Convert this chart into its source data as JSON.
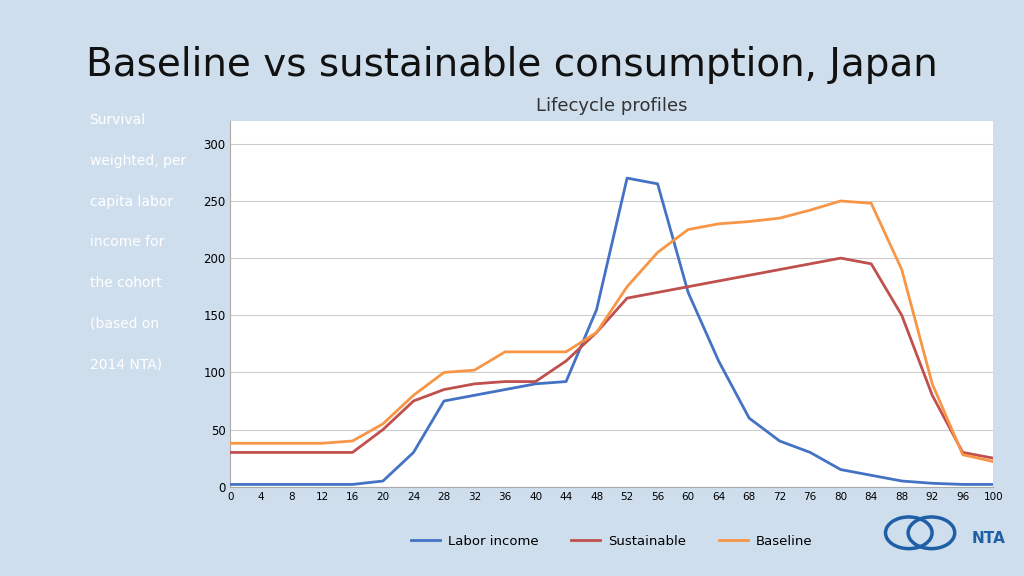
{
  "title": "Baseline vs sustainable consumption, Japan",
  "chart_title": "Lifecycle profiles",
  "background_color": "#cfdeed",
  "chart_bg": "#ffffff",
  "sidebar_lines": [
    "Survival",
    "weighted, per",
    "capita labor",
    "income for",
    "the cohort",
    "(based on",
    "2014 NTA)"
  ],
  "sidebar_bg": "#4a9fd4",
  "sidebar_text_color": "#ffffff",
  "x_ticks": [
    0,
    4,
    8,
    12,
    16,
    20,
    24,
    28,
    32,
    36,
    40,
    44,
    48,
    52,
    56,
    60,
    64,
    68,
    72,
    76,
    80,
    84,
    88,
    92,
    96,
    100
  ],
  "ylim": [
    0,
    320
  ],
  "y_ticks": [
    0,
    50,
    100,
    150,
    200,
    250,
    300
  ],
  "labor_income_color": "#4472c4",
  "sustainable_color": "#c0504d",
  "baseline_color": "#f79646",
  "legend_labels": [
    "Labor income",
    "Sustainable",
    "Baseline"
  ],
  "labor_income": [
    2,
    2,
    2,
    2,
    2,
    5,
    30,
    75,
    80,
    85,
    90,
    92,
    155,
    270,
    265,
    170,
    110,
    60,
    40,
    30,
    15,
    10,
    5,
    3,
    2,
    2
  ],
  "sustainable": [
    30,
    30,
    30,
    30,
    30,
    50,
    75,
    85,
    90,
    92,
    92,
    110,
    135,
    165,
    170,
    175,
    180,
    185,
    190,
    195,
    200,
    195,
    150,
    80,
    30,
    25
  ],
  "baseline": [
    38,
    38,
    38,
    38,
    40,
    55,
    80,
    100,
    102,
    118,
    118,
    118,
    135,
    175,
    205,
    225,
    230,
    232,
    235,
    242,
    250,
    248,
    190,
    90,
    28,
    22
  ]
}
